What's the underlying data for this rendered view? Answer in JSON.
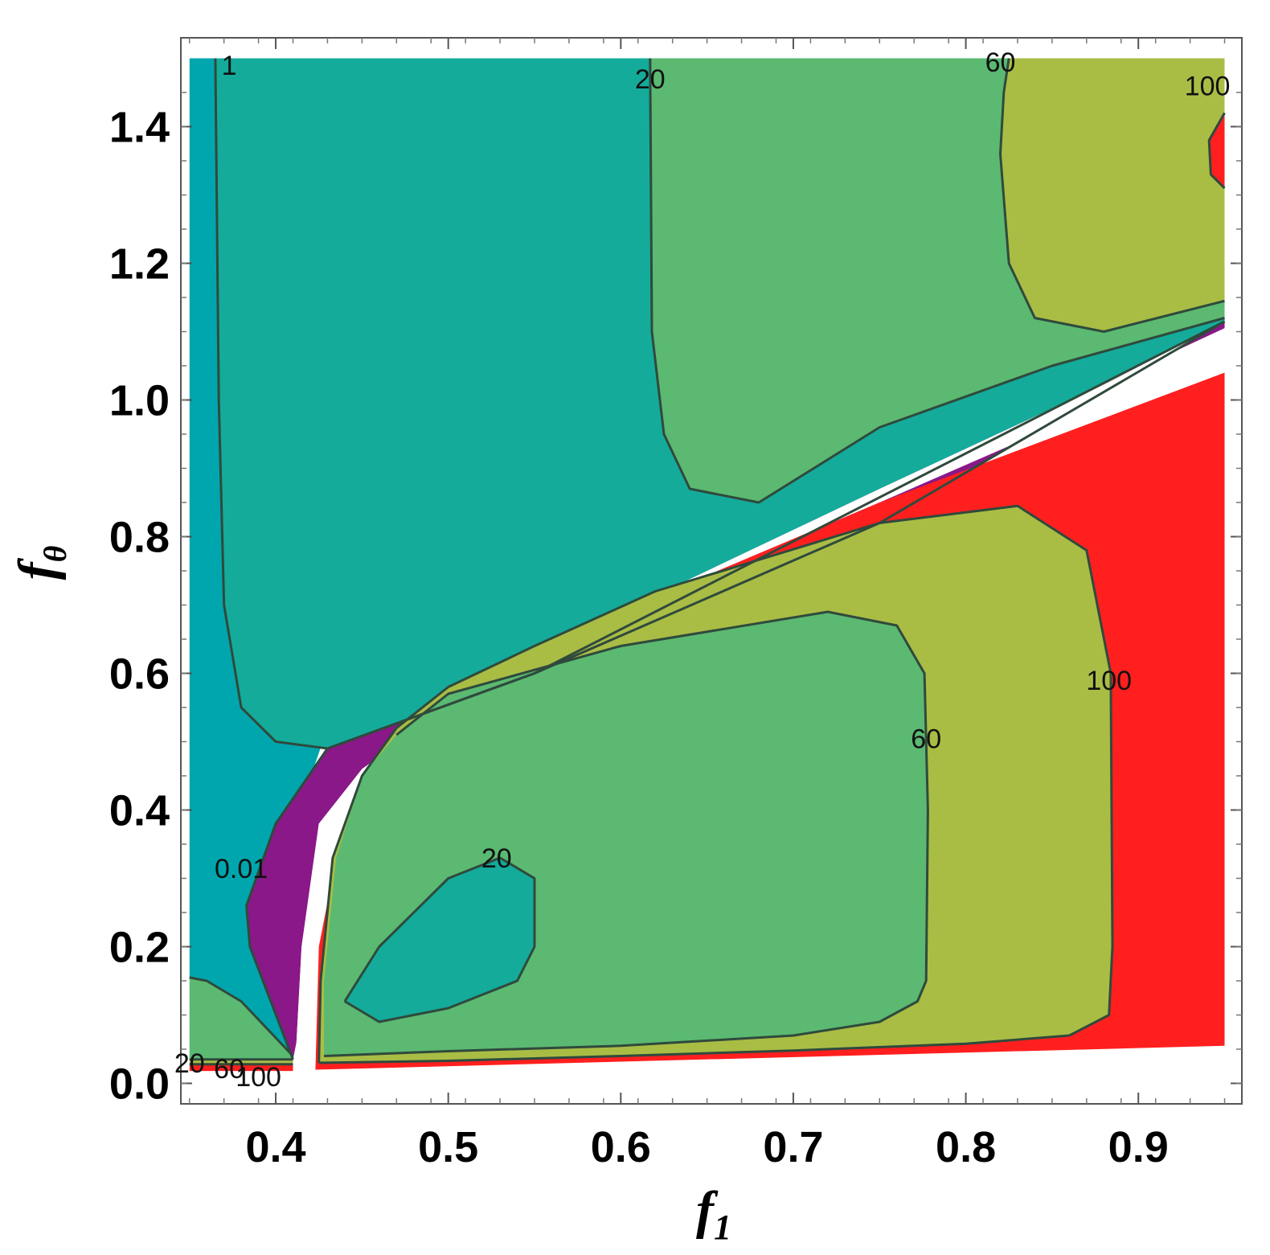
{
  "chart_data": {
    "type": "contour",
    "xlabel": "f",
    "xlabel_sub": "1",
    "ylabel": "f",
    "ylabel_sub": "θ",
    "xlim": [
      0.345,
      0.96
    ],
    "ylim": [
      -0.03,
      1.53
    ],
    "xticks": [
      0.4,
      0.5,
      0.6,
      0.7,
      0.8,
      0.9
    ],
    "xtick_labels": [
      "0.4",
      "0.5",
      "0.6",
      "0.7",
      "0.8",
      "0.9"
    ],
    "yticks": [
      0.0,
      0.2,
      0.4,
      0.6,
      0.8,
      1.0,
      1.2,
      1.4
    ],
    "ytick_labels": [
      "0.0",
      "0.2",
      "0.4",
      "0.6",
      "0.8",
      "1.0",
      "1.2",
      "1.4"
    ],
    "grid": false,
    "contour_levels": [
      0.01,
      1,
      20,
      60,
      100
    ],
    "colors": {
      "below_0.01": "#8a1888",
      "0.01_to_1": "#00a6ad",
      "1_to_20": "#14ab9b",
      "20_to_60": "#5bb972",
      "60_to_100": "#a9bd45",
      "above_100": "#ff1f1f",
      "undefined": "#ffffff",
      "contour_line": "#2f4a3c"
    },
    "contour_labels": [
      {
        "text": "1",
        "x": 0.373,
        "y": 1.49
      },
      {
        "text": "20",
        "x": 0.617,
        "y": 1.47
      },
      {
        "text": "60",
        "x": 0.82,
        "y": 1.495
      },
      {
        "text": "100",
        "x": 0.94,
        "y": 1.46
      },
      {
        "text": "100",
        "x": 0.883,
        "y": 0.59
      },
      {
        "text": "60",
        "x": 0.777,
        "y": 0.505
      },
      {
        "text": "20",
        "x": 0.528,
        "y": 0.33
      },
      {
        "text": "0.01",
        "x": 0.38,
        "y": 0.315
      },
      {
        "text": "20",
        "x": 0.35,
        "y": 0.03
      },
      {
        "text": "60",
        "x": 0.373,
        "y": 0.022
      },
      {
        "text": "100",
        "x": 0.39,
        "y": 0.01
      }
    ]
  }
}
